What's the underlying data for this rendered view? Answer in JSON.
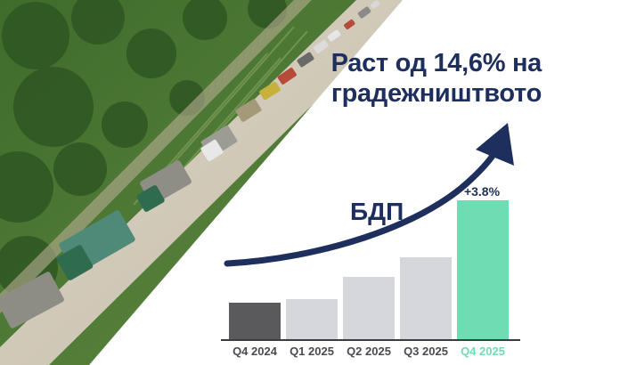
{
  "headline": {
    "line1": "Раст од 14,6% на",
    "line2": "градежништвото"
  },
  "indicator_label": "БДП",
  "colors": {
    "text_navy": "#1e2f5e",
    "bar_dark": "#5a5a5c",
    "bar_light": "#d6d7dc",
    "bar_highlight": "#6fdcb3",
    "label_highlight": "#6fdcb3",
    "label_default": "#4a4a52"
  },
  "chart_data": {
    "type": "bar",
    "categories": [
      "Q4 2024",
      "Q1 2025",
      "Q2 2025",
      "Q3 2025",
      "Q4 2025"
    ],
    "values": [
      1.0,
      1.1,
      1.7,
      2.25,
      3.8
    ],
    "highlight_index": 4,
    "data_labels": [
      "",
      "",
      "",
      "",
      "+3.8%"
    ],
    "title": "",
    "xlabel": "",
    "ylabel": "",
    "grid": false,
    "legend": "none",
    "trend_arrow": true
  }
}
